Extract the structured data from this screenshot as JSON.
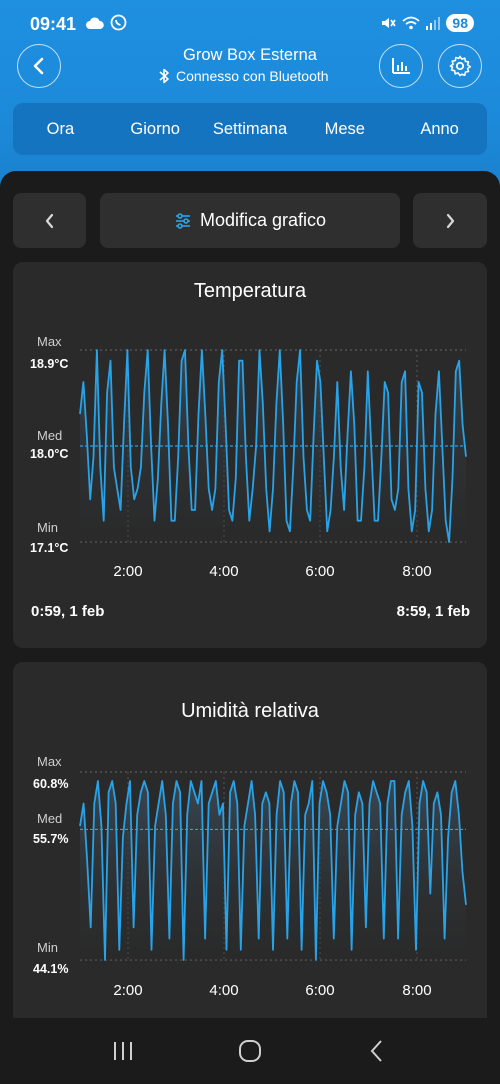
{
  "status_bar": {
    "time": "09:41",
    "battery": "98",
    "icons_left": [
      "cloud-icon",
      "whatsapp-icon"
    ],
    "icons_right": [
      "mute-icon",
      "wifi-icon",
      "signal-icon"
    ]
  },
  "header": {
    "title": "Grow Box Esterna",
    "subtitle": "Connesso con Bluetooth",
    "accent_color": "#1c8ad9"
  },
  "tabs": [
    {
      "label": "Ora"
    },
    {
      "label": "Giorno"
    },
    {
      "label": "Settimana"
    },
    {
      "label": "Mese"
    },
    {
      "label": "Anno"
    }
  ],
  "chart_nav": {
    "edit_label": "Modifica grafico"
  },
  "temperature": {
    "title": "Temperatura",
    "max_label": "Max",
    "max_value": "18.9°C",
    "med_label": "Med",
    "med_value": "18.0°C",
    "min_label": "Min",
    "min_value": "17.1°C",
    "x_ticks": [
      "2:00",
      "4:00",
      "6:00",
      "8:00"
    ],
    "range_start": "0:59,  1 feb",
    "range_end": "8:59,  1 feb"
  },
  "humidity": {
    "title": "Umidità relativa",
    "max_label": "Max",
    "max_value": "60.8%",
    "med_label": "Med",
    "med_value": "55.7%",
    "min_label": "Min",
    "min_value": "44.1%",
    "x_ticks": [
      "2:00",
      "4:00",
      "6:00",
      "8:00"
    ]
  },
  "chart_data": [
    {
      "type": "line",
      "title": "Temperatura",
      "x_range": [
        "0:59",
        "8:59"
      ],
      "x_ticks": [
        "2:00",
        "4:00",
        "6:00",
        "8:00"
      ],
      "ylim": [
        17.1,
        18.9
      ],
      "reference_lines": {
        "max": 18.9,
        "med": 18.0,
        "min": 17.1
      },
      "series": [
        {
          "color": "#29a3e8",
          "values": [
            18.3,
            18.6,
            18.1,
            17.5,
            17.9,
            18.9,
            17.8,
            17.3,
            18.5,
            18.8,
            17.8,
            17.6,
            17.4,
            18.2,
            18.9,
            17.8,
            17.5,
            17.6,
            17.8,
            18.5,
            18.9,
            18.0,
            17.3,
            17.7,
            18.4,
            18.9,
            18.2,
            17.3,
            17.3,
            17.9,
            18.8,
            18.9,
            18.0,
            17.4,
            17.4,
            18.3,
            18.9,
            18.3,
            17.6,
            17.4,
            17.6,
            18.6,
            18.9,
            18.2,
            17.4,
            17.3,
            17.7,
            18.8,
            18.8,
            17.9,
            17.3,
            17.6,
            18.0,
            18.9,
            18.4,
            17.6,
            17.2,
            17.6,
            18.4,
            18.9,
            18.2,
            17.3,
            17.2,
            17.8,
            18.6,
            18.9,
            17.9,
            17.4,
            17.3,
            18.1,
            18.8,
            18.6,
            17.9,
            17.2,
            17.4,
            17.9,
            18.6,
            17.8,
            17.4,
            18.1,
            18.7,
            18.2,
            17.3,
            17.3,
            17.8,
            18.7,
            18.0,
            17.3,
            17.3,
            17.9,
            18.6,
            18.5,
            17.5,
            17.4,
            17.6,
            18.6,
            18.7,
            17.6,
            17.2,
            17.4,
            18.6,
            18.5,
            17.6,
            17.2,
            17.4,
            18.3,
            18.7,
            18.0,
            17.3,
            17.1,
            17.7,
            18.7,
            18.8,
            18.2,
            17.9
          ]
        }
      ]
    },
    {
      "type": "line",
      "title": "Umidità relativa",
      "x_ticks": [
        "2:00",
        "4:00",
        "6:00",
        "8:00"
      ],
      "ylim": [
        44.1,
        60.8
      ],
      "reference_lines": {
        "max": 60.8,
        "med": 55.7,
        "min": 44.1
      },
      "series": [
        {
          "color": "#29a3e8",
          "values": [
            56,
            58,
            53,
            47,
            58,
            60,
            56,
            44,
            59,
            60,
            58,
            45,
            55,
            58,
            60,
            47,
            57,
            59,
            60,
            59,
            45,
            56,
            58,
            60,
            57,
            46,
            58,
            60,
            59,
            44,
            57,
            60,
            59,
            58,
            60,
            46,
            58,
            59,
            60,
            57,
            58,
            45,
            59,
            60,
            58,
            45,
            56,
            58,
            60,
            57,
            46,
            58,
            59,
            58,
            45,
            57,
            60,
            59,
            46,
            58,
            60,
            59,
            45,
            57,
            58,
            60,
            44,
            58,
            60,
            59,
            57,
            46,
            56,
            58,
            60,
            59,
            45,
            57,
            59,
            58,
            47,
            58,
            60,
            59,
            58,
            46,
            58,
            60,
            60,
            46,
            57,
            59,
            60,
            56,
            45,
            58,
            60,
            59,
            50,
            58,
            59,
            57,
            46,
            55,
            59,
            60,
            57,
            52,
            49
          ]
        }
      ]
    }
  ]
}
